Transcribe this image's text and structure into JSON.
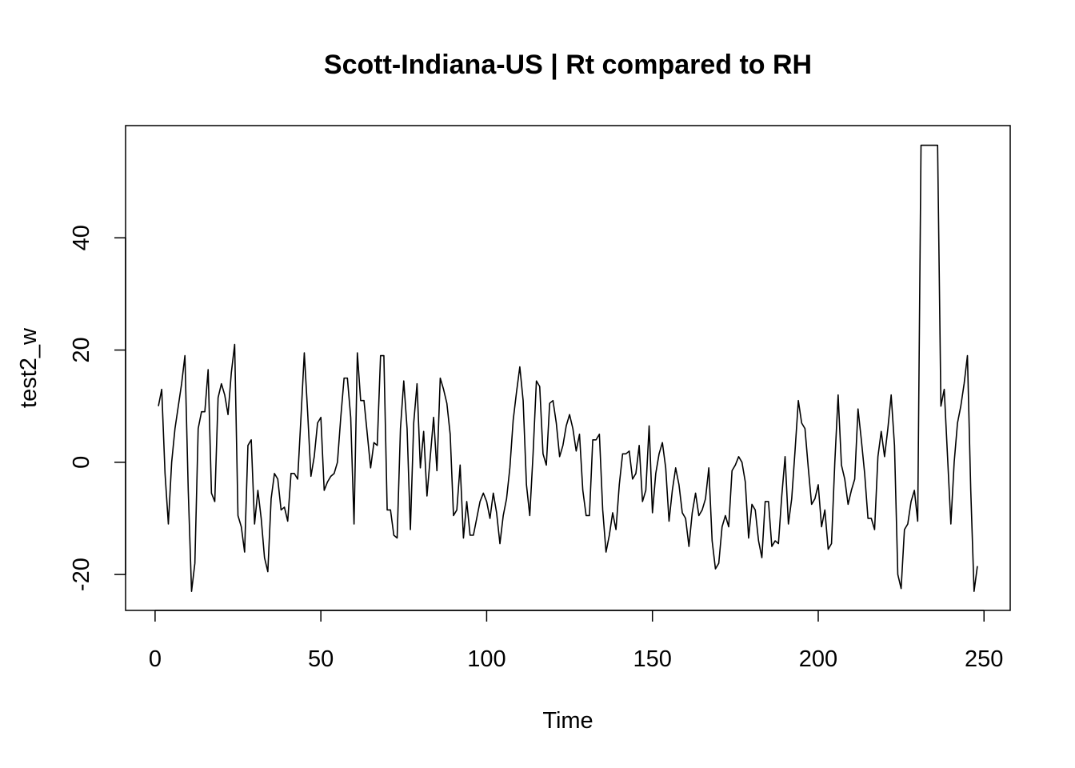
{
  "chart_data": {
    "type": "line",
    "title": "Scott-Indiana-US | Rt compared to RH",
    "xlabel": "Time",
    "ylabel": "test2_w",
    "xlim": [
      -8.9,
      257.9
    ],
    "ylim": [
      -26.4,
      60.0
    ],
    "x_ticks": [
      0,
      50,
      100,
      150,
      200,
      250
    ],
    "y_ticks": [
      -20,
      0,
      20,
      40
    ],
    "grid": false,
    "series": [
      {
        "x_start": 1,
        "values": [
          10,
          13,
          -2,
          -11,
          0,
          6,
          10,
          14,
          19,
          -5,
          -23,
          -18,
          6,
          9,
          9,
          16.5,
          -5.5,
          -7,
          11.5,
          14,
          12,
          8.5,
          16,
          21,
          -9.5,
          -11.5,
          -16,
          3,
          4,
          -11,
          -5,
          -10,
          -17,
          -19.5,
          -6.5,
          -2,
          -3,
          -8.5,
          -8,
          -10.5,
          -2,
          -2,
          -3,
          8,
          19.5,
          9,
          -2.5,
          1,
          7,
          8,
          -5,
          -3.5,
          -2.5,
          -2,
          0,
          8,
          15,
          15,
          8,
          -11,
          19.5,
          11,
          11,
          5,
          -1,
          3.5,
          3,
          19,
          19,
          -8.5,
          -8.5,
          -13,
          -13.5,
          6,
          14.5,
          6,
          -12,
          7,
          14,
          -1,
          5.5,
          -6,
          1,
          8,
          -1.5,
          15,
          13,
          10.5,
          5,
          -9.5,
          -8.5,
          -0.5,
          -13.5,
          -7,
          -13,
          -13,
          -10,
          -7,
          -5.5,
          -7,
          -10,
          -5.5,
          -9,
          -14.5,
          -9.5,
          -6.5,
          -1,
          7.5,
          12.5,
          17,
          11,
          -4,
          -9.5,
          1.5,
          14.5,
          13.5,
          1.5,
          -0.5,
          10.5,
          11,
          7,
          1,
          3,
          6.5,
          8.5,
          6,
          2,
          5,
          -5,
          -9.5,
          -9.5,
          4,
          4,
          5,
          -8.5,
          -16,
          -13,
          -9,
          -12,
          -4,
          1.5,
          1.5,
          2,
          -3,
          -2,
          3,
          -7,
          -5,
          6.5,
          -9,
          -2,
          1.5,
          3.5,
          -1,
          -10.5,
          -5,
          -1,
          -4,
          -9,
          -10,
          -15,
          -9,
          -5.5,
          -9.5,
          -8.5,
          -6.5,
          -1,
          -14,
          -19,
          -18,
          -11.5,
          -9.5,
          -11.5,
          -1.5,
          -0.5,
          1,
          0,
          -3.5,
          -13.5,
          -7.5,
          -8.5,
          -14,
          -17,
          -7,
          -7,
          -15,
          -14,
          -14.5,
          -6,
          1,
          -11,
          -6.5,
          2,
          11,
          7,
          6,
          -1,
          -7.5,
          -6.5,
          -4,
          -11.5,
          -8.5,
          -15.5,
          -14.5,
          0,
          12,
          -0.5,
          -3,
          -7.5,
          -5,
          -3,
          9.5,
          4,
          -2,
          -10,
          -10,
          -12,
          1,
          5.5,
          1,
          6,
          12,
          3,
          -20,
          -22.5,
          -12,
          -11,
          -7,
          -5,
          -10.5,
          56.5,
          56.5,
          56.5,
          56.5,
          56.5,
          56.5,
          10,
          13,
          1,
          -11,
          0,
          7,
          10,
          14,
          19,
          -5,
          -23,
          -18.5
        ]
      }
    ]
  }
}
